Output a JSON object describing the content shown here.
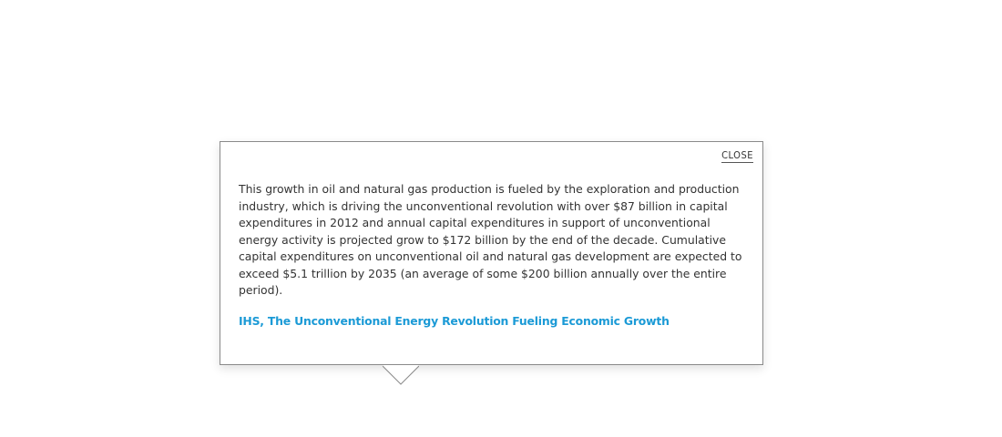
{
  "popover": {
    "close_label": "CLOSE",
    "body": "This growth in oil and natural gas production is fueled by the exploration and production industry, which is driving the unconventional revolution with over $87 billion in capital expenditures in 2012 and annual capital expenditures in support of unconventional energy activity is projected grow to $172 billion by the end of the decade. Cumulative capital expenditures on unconventional oil and natural gas development are expected to exceed $5.1 trillion by 2035 (an average of some $200 billion annually over the entire period).",
    "source_link": "IHS, The Unconventional Energy Revolution Fueling Economic Growth"
  },
  "colors": {
    "link": "#1b9ad6",
    "text": "#333333",
    "border": "#8a8a8a"
  }
}
